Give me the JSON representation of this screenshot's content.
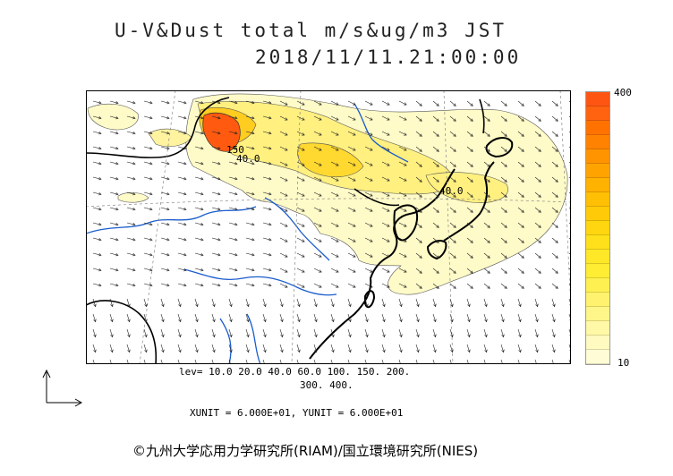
{
  "header": {
    "title": "U-V&Dust total m/s&ug/m3 JST",
    "datetime": "2018/11/11.21:00:00"
  },
  "map": {
    "contour_labels": [
      "150",
      "40.0",
      "40.0"
    ],
    "colors": {
      "land": "#ffffff",
      "dust_low": "#fff9c4",
      "dust_mid": "#ffe14a",
      "dust_high": "#ffa200",
      "dust_max": "#ff5a10",
      "rivers": "#1a5ccc",
      "coast": "#000000"
    }
  },
  "colorbar": {
    "max_label": "400",
    "min_label": "10",
    "levels": [
      "#fffcd6",
      "#fffac0",
      "#fff8a6",
      "#fff68a",
      "#fff26e",
      "#fff052",
      "#ffed33",
      "#ffe828",
      "#ffe01a",
      "#ffd610",
      "#ffcb08",
      "#ffbf05",
      "#ffb200",
      "#ffa300",
      "#ff9400",
      "#ff8200",
      "#ff7200",
      "#ff6310",
      "#ff5512"
    ]
  },
  "legend": {
    "lev_line1": "lev= 10.0 20.0 40.0 60.0 100. 150. 200.",
    "lev_line2": "300. 400.",
    "units": "XUNIT = 6.000E+01, YUNIT = 6.000E+01"
  },
  "footer": {
    "copyright": "©九州大学応用力学研究所(RIAM)/国立環境研究所(NIES)"
  }
}
